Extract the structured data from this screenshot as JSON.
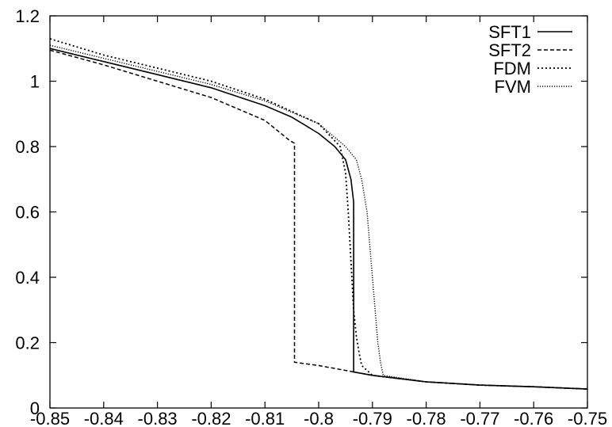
{
  "chart_data": {
    "type": "line",
    "title": "",
    "xlabel": "",
    "ylabel": "",
    "xlim": [
      -0.85,
      -0.75
    ],
    "ylim": [
      0,
      1.2
    ],
    "xticks": [
      -0.85,
      -0.84,
      -0.83,
      -0.82,
      -0.81,
      -0.8,
      -0.79,
      -0.78,
      -0.77,
      -0.76,
      -0.75
    ],
    "xtick_labels": [
      "-0.85",
      "-0.84",
      "-0.83",
      "-0.82",
      "-0.81",
      "-0.8",
      "-0.79",
      "-0.78",
      "-0.77",
      "-0.76",
      "-0.75"
    ],
    "yticks": [
      0,
      0.2,
      0.4,
      0.6,
      0.8,
      1,
      1.2
    ],
    "ytick_labels": [
      "0",
      "0.2",
      "0.4",
      "0.6",
      "0.8",
      "1",
      "1.2"
    ],
    "grid": false,
    "legend_position": "top-right",
    "series": [
      {
        "name": "SFT1",
        "dash": "solid",
        "x": [
          -0.85,
          -0.84,
          -0.83,
          -0.82,
          -0.81,
          -0.805,
          -0.8,
          -0.797,
          -0.795,
          -0.794,
          -0.7935,
          -0.7935,
          -0.79,
          -0.78,
          -0.77,
          -0.76,
          -0.75
        ],
        "y": [
          1.1,
          1.06,
          1.02,
          0.98,
          0.925,
          0.89,
          0.84,
          0.8,
          0.76,
          0.7,
          0.63,
          0.11,
          0.1,
          0.08,
          0.07,
          0.065,
          0.058
        ]
      },
      {
        "name": "SFT2",
        "dash": "dashed",
        "x": [
          -0.85,
          -0.84,
          -0.83,
          -0.82,
          -0.81,
          -0.807,
          -0.8055,
          -0.8045,
          -0.8045,
          -0.8,
          -0.79,
          -0.78,
          -0.77,
          -0.76,
          -0.75
        ],
        "y": [
          1.095,
          1.05,
          1.0,
          0.95,
          0.88,
          0.84,
          0.82,
          0.81,
          0.14,
          0.13,
          0.1,
          0.08,
          0.07,
          0.065,
          0.058
        ]
      },
      {
        "name": "FDM",
        "dash": "dotted",
        "x": [
          -0.85,
          -0.84,
          -0.83,
          -0.82,
          -0.81,
          -0.8,
          -0.796,
          -0.795,
          -0.7945,
          -0.794,
          -0.7935,
          -0.793,
          -0.7925,
          -0.792,
          -0.79,
          -0.78,
          -0.77,
          -0.76,
          -0.75
        ],
        "y": [
          1.13,
          1.08,
          1.04,
          1.0,
          0.945,
          0.87,
          0.8,
          0.72,
          0.6,
          0.45,
          0.3,
          0.22,
          0.17,
          0.13,
          0.1,
          0.08,
          0.07,
          0.065,
          0.058
        ]
      },
      {
        "name": "FVM",
        "dash": "fine",
        "x": [
          -0.85,
          -0.84,
          -0.83,
          -0.82,
          -0.81,
          -0.8,
          -0.795,
          -0.793,
          -0.792,
          -0.791,
          -0.7905,
          -0.79,
          -0.7895,
          -0.789,
          -0.7885,
          -0.788,
          -0.78,
          -0.77,
          -0.76,
          -0.75
        ],
        "y": [
          1.11,
          1.07,
          1.03,
          0.99,
          0.94,
          0.87,
          0.8,
          0.76,
          0.7,
          0.6,
          0.5,
          0.4,
          0.3,
          0.2,
          0.14,
          0.1,
          0.08,
          0.07,
          0.065,
          0.058
        ]
      }
    ]
  }
}
